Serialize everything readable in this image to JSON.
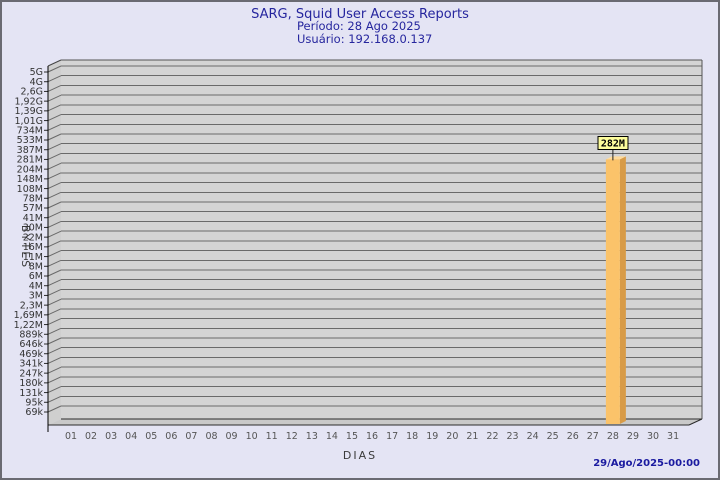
{
  "header": {
    "title": "SARG, Squid User Access Reports",
    "period": "Período: 28 Ago 2025",
    "user": "Usuário: 192.168.0.137"
  },
  "footer": {
    "generated": "29/Ago/2025-00:00"
  },
  "chart_data": {
    "type": "bar",
    "title": "SARG, Squid User Access Reports",
    "subtitle": [
      "Período: 28 Ago 2025",
      "Usuário: 192.168.0.137"
    ],
    "xlabel": "DIAS",
    "ylabel": "BYTES",
    "y_scale": "log",
    "y_range_bytes": [
      69000,
      5000000000
    ],
    "grid": "horizontal",
    "style": "3d-bar",
    "x_tick_labels": [
      "01",
      "02",
      "03",
      "04",
      "05",
      "06",
      "07",
      "08",
      "09",
      "10",
      "11",
      "12",
      "13",
      "14",
      "15",
      "16",
      "17",
      "18",
      "19",
      "20",
      "21",
      "22",
      "23",
      "24",
      "25",
      "26",
      "27",
      "28",
      "29",
      "30",
      "31"
    ],
    "y_tick_labels": [
      "5G",
      "4G",
      "2,6G",
      "1,92G",
      "1,39G",
      "1,01G",
      "734M",
      "533M",
      "387M",
      "281M",
      "204M",
      "148M",
      "108M",
      "78M",
      "57M",
      "41M",
      "30M",
      "22M",
      "16M",
      "11M",
      "8M",
      "6M",
      "4M",
      "3M",
      "2,3M",
      "1,69M",
      "1,22M",
      "889k",
      "646k",
      "469k",
      "341k",
      "247k",
      "180k",
      "131k",
      "95k",
      "69k"
    ],
    "bars": [
      {
        "x": "28",
        "value_label": "282M",
        "value_bytes": 282000000
      }
    ],
    "colors": {
      "page_bg": "#E4E4F4",
      "plot_bg": "#D4D4D4",
      "wall_bg": "#CFCFCF",
      "floor_bg": "#C9C9C9",
      "grid": "#6A6A6A",
      "axis": "#2B2B2B",
      "tick_text": "#333333",
      "title_text": "#26269E",
      "footer_text": "#1A1AA0",
      "bar_front": "#FBC36A",
      "bar_side": "#D89B47",
      "bar_top": "#FFDB9B",
      "flag_bg": "#FCFC9C",
      "flag_border": "#000000",
      "flag_text": "#000000"
    }
  }
}
